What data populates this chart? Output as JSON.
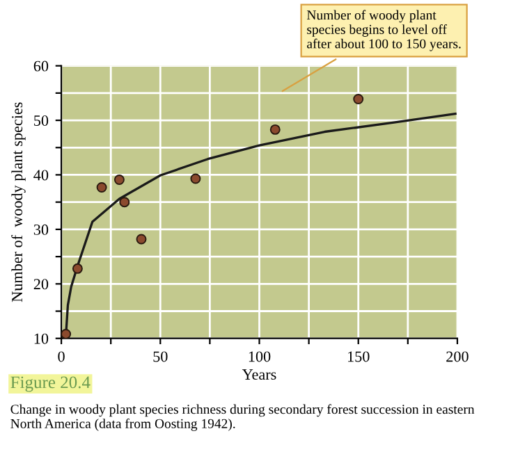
{
  "chart_data": {
    "type": "scatter",
    "xlabel": "Years",
    "ylabel": "Number of  woody plant species",
    "xlim": [
      0,
      200
    ],
    "ylim": [
      10,
      60
    ],
    "xticks": [
      0,
      {
        "value": 25,
        "label": null
      },
      50,
      {
        "value": 75,
        "label": null
      },
      100,
      {
        "value": 125,
        "label": null
      },
      150,
      {
        "value": 175,
        "label": null
      },
      200
    ],
    "yticks": [
      10,
      {
        "value": 15,
        "label": null
      },
      20,
      {
        "value": 25,
        "label": null
      },
      30,
      {
        "value": 35,
        "label": null
      },
      40,
      {
        "value": 45,
        "label": null
      },
      50,
      {
        "value": 55,
        "label": null
      },
      60
    ],
    "grid": true,
    "marker": "circle",
    "series": [
      {
        "color": "#8b4a2e",
        "x": [
          2.3,
          8.2,
          20.4,
          29.3,
          31.9,
          40.4,
          67.8,
          108,
          150
        ],
        "values": [
          10.8,
          22.8,
          37.7,
          39.1,
          35.0,
          28.2,
          39.3,
          48.3,
          53.9
        ]
      },
      {
        "type": "line",
        "color": "#1a1a1a",
        "marker": "none",
        "line_style": "solid",
        "x": [
          2.3,
          3.3,
          5,
          8.2,
          15.7,
          29.3,
          50,
          74,
          100,
          133,
          168,
          199
        ],
        "values": [
          10.5,
          16.1,
          19.5,
          23.3,
          31.4,
          35.6,
          39.9,
          42.9,
          45.4,
          47.9,
          49.6,
          51.2
        ]
      }
    ],
    "annotations": [
      "Number of woody plant\nspecies begins to level off\nafter about 100 to 150 years.",
      "Figure 20.4",
      "Change in woody plant species richness during secondary forest succession in eastern North America (data from Oosting 1942)."
    ]
  }
}
